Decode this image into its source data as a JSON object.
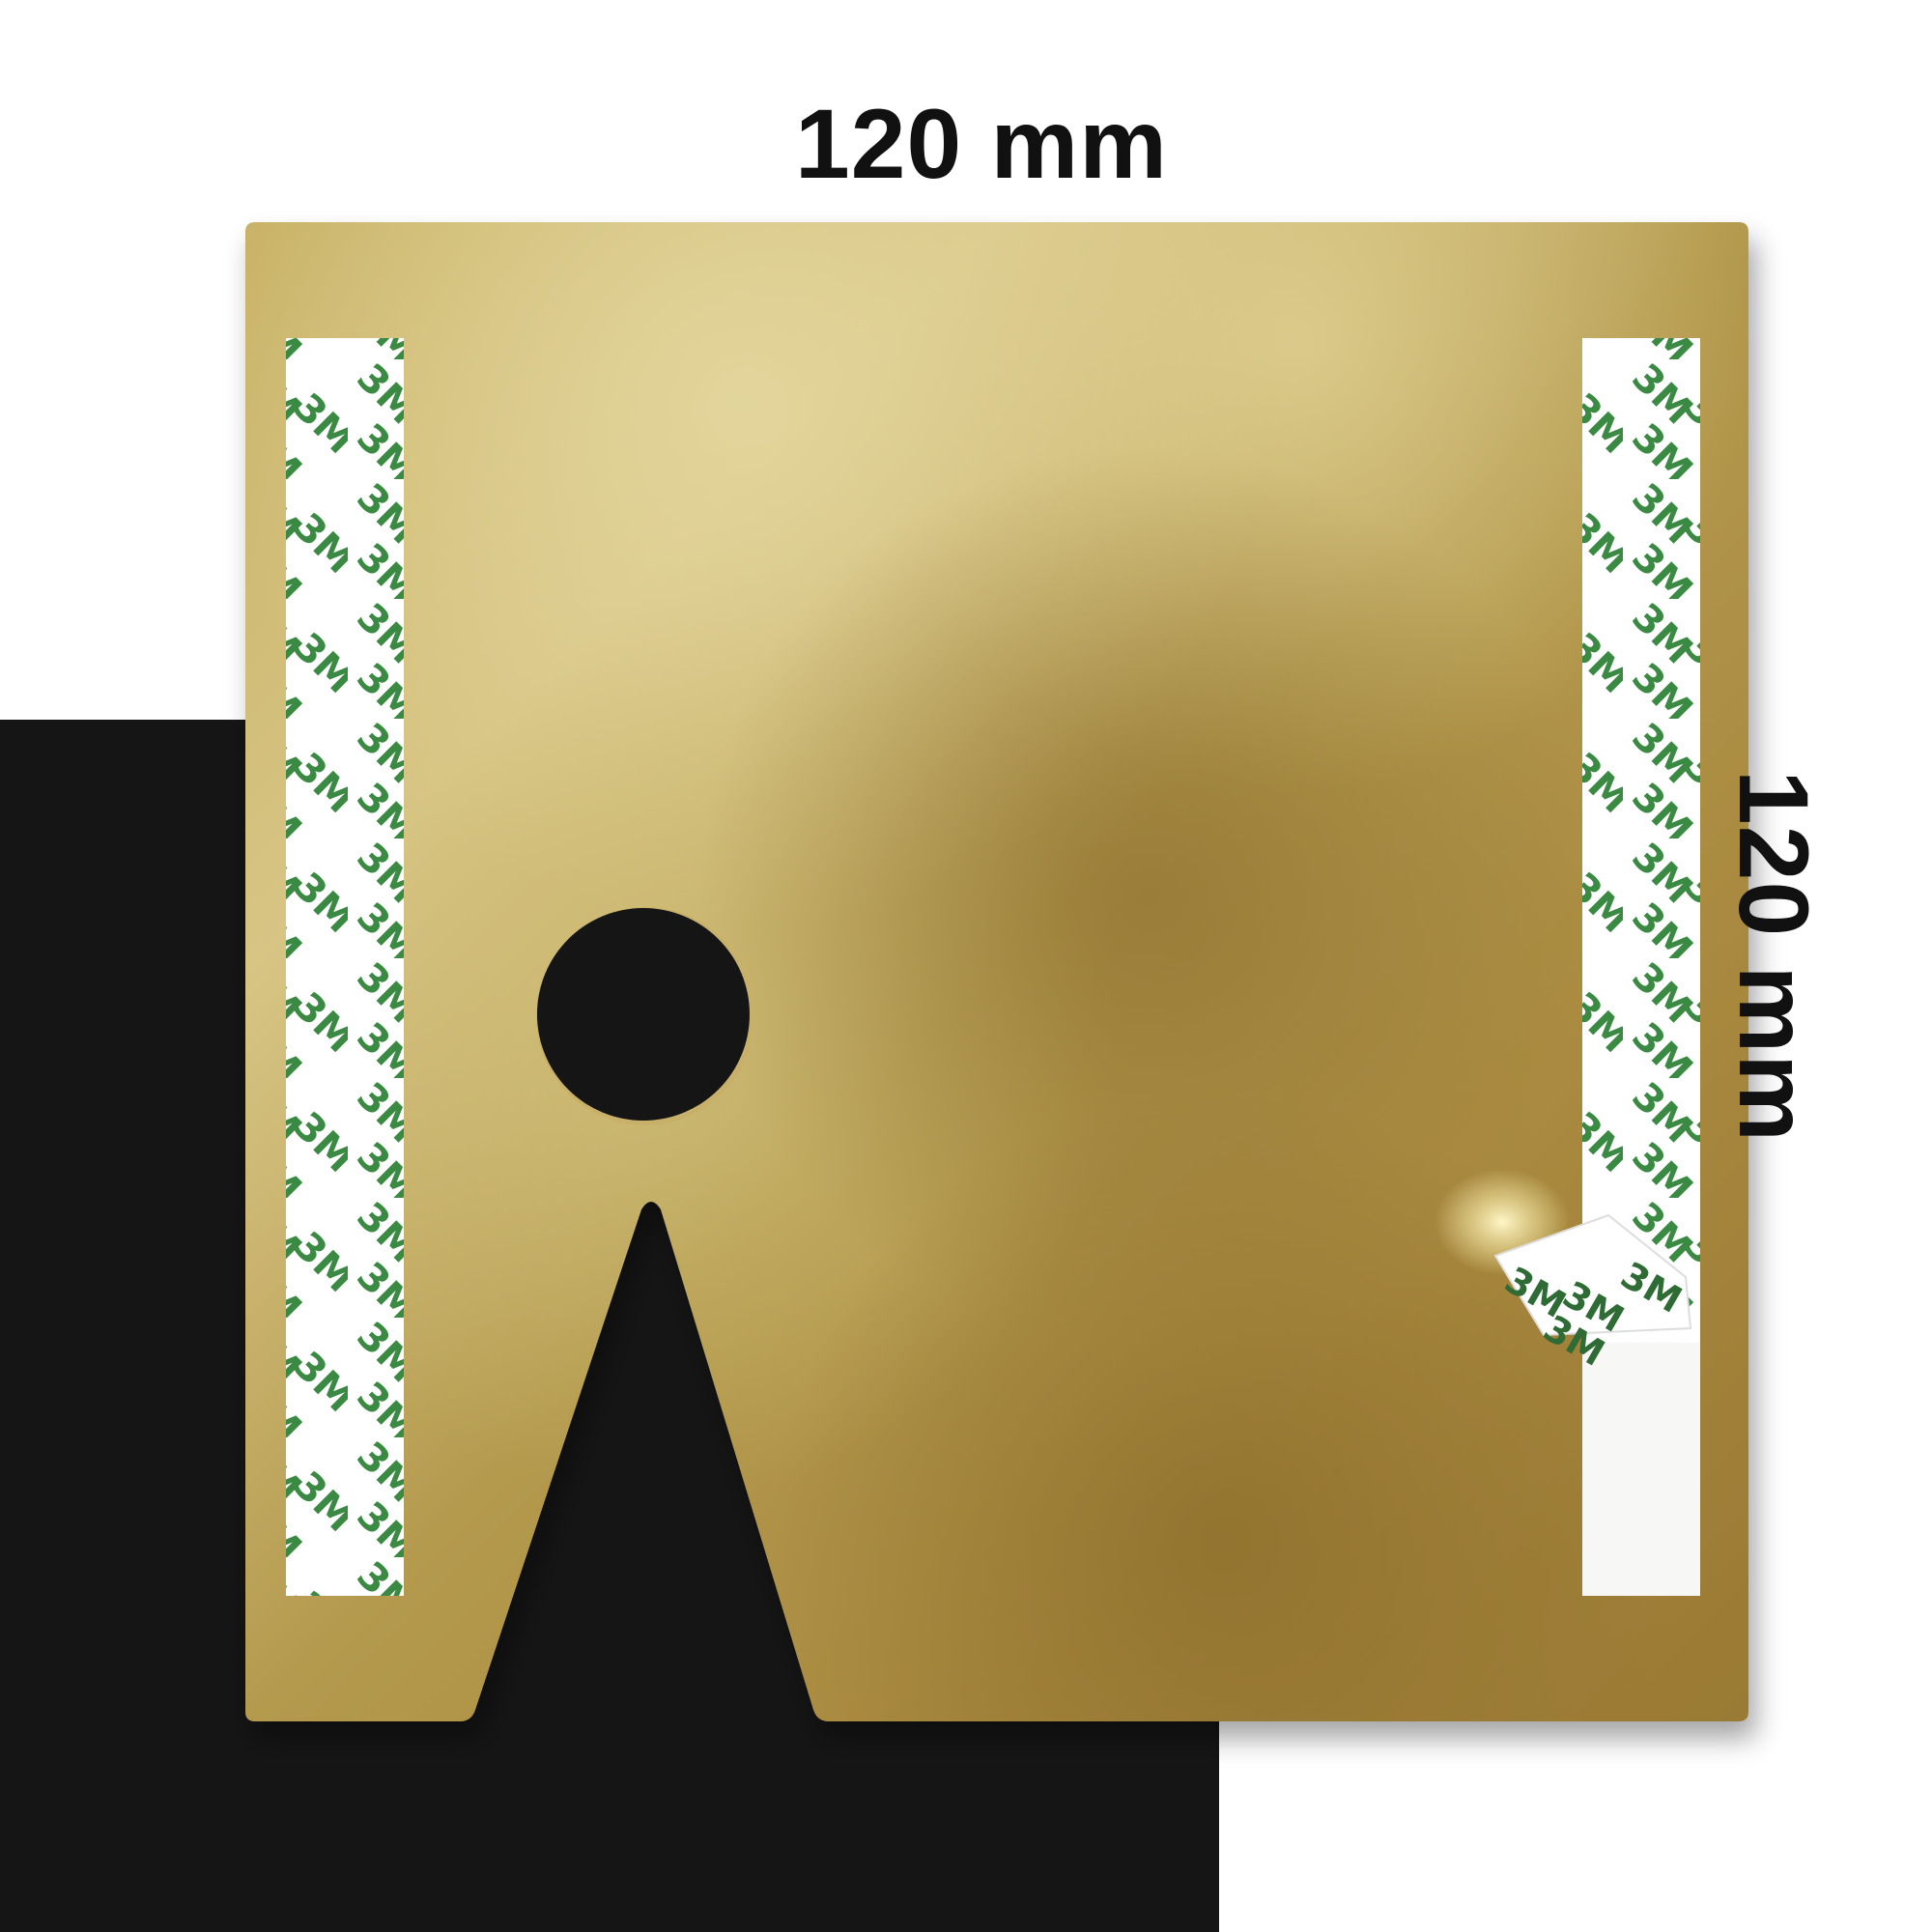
{
  "dimensions": {
    "width_label": "120 mm",
    "height_label": "120 mm"
  },
  "plate": {
    "material_color": "#c2a75a",
    "tape_brand_logo": "3M",
    "tape_logo_color": "#3b8a43"
  },
  "colors": {
    "background": "#ffffff",
    "dark_block": "#151515",
    "tape_backing": "#ffffff"
  }
}
